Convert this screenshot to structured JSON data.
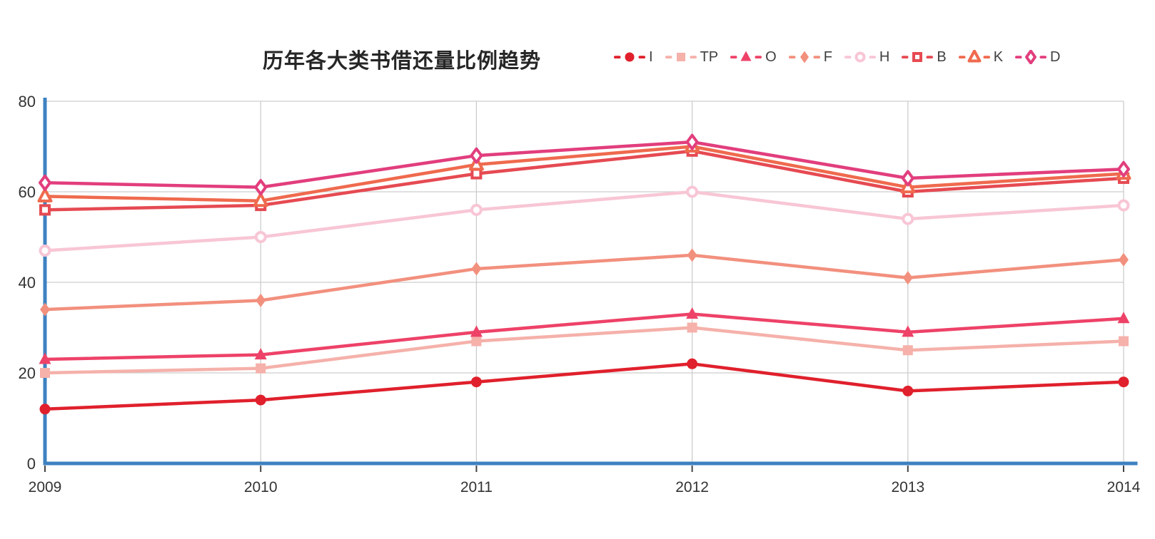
{
  "chart_data": {
    "type": "line",
    "title": "历年各大类书借还量比例趋势",
    "x": [
      "2009",
      "2010",
      "2011",
      "2012",
      "2013",
      "2014"
    ],
    "xlabel": "",
    "ylabel": "",
    "ylim": [
      0,
      80
    ],
    "yticks": [
      0,
      20,
      40,
      60,
      80
    ],
    "grid": true,
    "legend_position": "top-right",
    "colors": {
      "axis": "#3e81c0",
      "gridline": "#cdcdcd",
      "tick_label": "#333333",
      "title_text": "#262626",
      "legend_text": "#404040"
    },
    "series": [
      {
        "name": "I",
        "color": "#e0202c",
        "marker": "circle",
        "filled": true,
        "values": [
          12,
          14,
          18,
          22,
          16,
          18
        ]
      },
      {
        "name": "TP",
        "color": "#f5b1aa",
        "marker": "square",
        "filled": true,
        "values": [
          20,
          21,
          27,
          30,
          25,
          27
        ]
      },
      {
        "name": "O",
        "color": "#ee4268",
        "marker": "triangle",
        "filled": true,
        "values": [
          23,
          24,
          29,
          33,
          29,
          32
        ]
      },
      {
        "name": "F",
        "color": "#f2907e",
        "marker": "diamond",
        "filled": true,
        "values": [
          34,
          36,
          43,
          46,
          41,
          45
        ]
      },
      {
        "name": "H",
        "color": "#f8c6d5",
        "marker": "circle",
        "filled": false,
        "values": [
          47,
          50,
          56,
          60,
          54,
          57
        ]
      },
      {
        "name": "B",
        "color": "#e64a52",
        "marker": "square",
        "filled": false,
        "values": [
          56,
          57,
          64,
          69,
          60,
          63
        ]
      },
      {
        "name": "K",
        "color": "#ef6a4e",
        "marker": "triangle",
        "filled": false,
        "values": [
          59,
          58,
          66,
          70,
          61,
          64
        ]
      },
      {
        "name": "D",
        "color": "#e23e7d",
        "marker": "diamond",
        "filled": false,
        "values": [
          62,
          61,
          68,
          71,
          63,
          65
        ]
      }
    ]
  }
}
